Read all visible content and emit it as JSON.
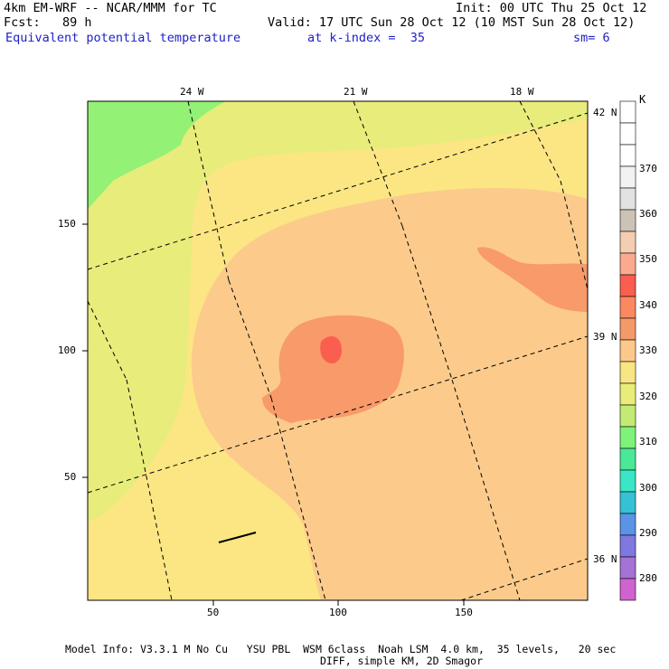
{
  "header": {
    "model": "4km EM-WRF -- NCAR/MMM for TC",
    "init": "Init: 00 UTC Thu 25 Oct 12",
    "fcst": "Fcst:   89 h",
    "valid": "Valid: 17 UTC Sun 28 Oct 12 (10 MST Sun 28 Oct 12)",
    "field": "Equivalent potential temperature",
    "kindex": "at k-index =  35",
    "sm": "sm= 6"
  },
  "map": {
    "lon_labels": [
      "24 W",
      "21 W",
      "18 W"
    ],
    "lat_labels": [
      "42 N",
      "39 N",
      "36 N"
    ],
    "x_ticks": [
      "50",
      "100",
      "150"
    ],
    "y_ticks": [
      "150",
      "100",
      "50"
    ]
  },
  "colorbar": {
    "unit": "K",
    "labels": [
      "370",
      "360",
      "350",
      "340",
      "330",
      "320",
      "310",
      "300",
      "290",
      "280"
    ],
    "colors": [
      "#ffffff",
      "#ffffff",
      "#ffffff",
      "#f2f2f2",
      "#e2e2e2",
      "#cdc2b6",
      "#f4cdb3",
      "#fcaa8e",
      "#fa5e4e",
      "#f9895f",
      "#f49a6a",
      "#fcc98a",
      "#f9e583",
      "#e9ec79",
      "#c3eb74",
      "#7ff27a",
      "#4be897",
      "#3be6c6",
      "#35c2d4",
      "#5b93e6",
      "#7f78e0",
      "#a473d5",
      "#cf63d0"
    ]
  },
  "footer": {
    "line1": "Model Info: V3.3.1 M No Cu   YSU PBL  WSM 6class  Noah LSM  4.0 km,  35 levels,   20 sec",
    "line2": "DIFF, simple KM, 2D Smagor"
  }
}
